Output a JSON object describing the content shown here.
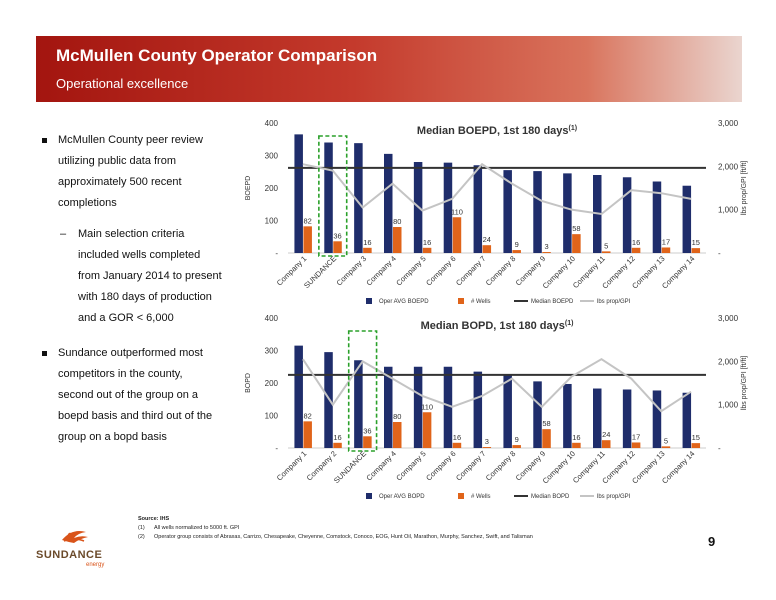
{
  "header": {
    "title": "McMullen County Operator Comparison",
    "subtitle": "Operational excellence"
  },
  "bullets": {
    "b1": [
      "McMullen County peer review",
      "utilizing public data from",
      "approximately 500 recent",
      "completions"
    ],
    "sub_dash": "–",
    "sub": [
      "Main selection criteria",
      "included wells completed",
      "from January 2014 to present",
      "with 180 days of production",
      "and a GOR < 6,000"
    ],
    "b2": [
      "Sundance outperformed most",
      "competitors in the county,",
      "second out of the group on a",
      "boepd basis and third out of the",
      "group on a bopd basis"
    ]
  },
  "footnotes": {
    "source": "Source: IHS",
    "n1": "(1)",
    "t1": "All wells normalized to 5000 ft. GPI",
    "n2": "(2)",
    "t2": "Operator group consists of Abraxas, Carrizo, Chesapeake, Cheyenne, Comstock, Conoco, EOG, Hunt Oil, Marathon, Murphy, Sanchez, Swift, and Talisman"
  },
  "logo": {
    "name": "SUNDANCE",
    "tag": "energy"
  },
  "page_number": "9",
  "colors": {
    "bar_primary": "#1f2d6b",
    "bar_wells": "#e0641a",
    "median": "#333333",
    "lbs_line": "#c4c4c4",
    "highlight_box": "#2aa02a"
  },
  "chart_data": [
    {
      "type": "bar",
      "title": "Median BOEPD, 1st 180 days",
      "title_sup": "(1)",
      "ylabel": "BOEPD",
      "y2label": "lbs prop/GPI [ft/ft]",
      "ylim": [
        0,
        400
      ],
      "y2lim": [
        0,
        3000
      ],
      "yticks": [
        "-",
        "100",
        "200",
        "300",
        "400"
      ],
      "y2ticks": [
        "-",
        "1,000",
        "2,000",
        "3,000"
      ],
      "categories": [
        "Company 1",
        "SUNDANCE",
        "Company 3",
        "Company 4",
        "Company 5",
        "Company 6",
        "Company 7",
        "Company 8",
        "Company 9",
        "Company 10",
        "Company 11",
        "Company 12",
        "Company 13",
        "Company 14"
      ],
      "highlight": "SUNDANCE",
      "median": 262,
      "series": [
        {
          "name": "Oper AVG BOEPD",
          "values": [
            365,
            340,
            338,
            305,
            280,
            278,
            270,
            255,
            252,
            245,
            240,
            233,
            220,
            207
          ]
        },
        {
          "name": "# Wells",
          "values": [
            82,
            36,
            16,
            80,
            16,
            110,
            24,
            9,
            3,
            58,
            5,
            16,
            17,
            15
          ]
        },
        {
          "name": "Median BOEPD"
        },
        {
          "name": "lbs prop/GPI",
          "values": [
            2050,
            1900,
            1050,
            1600,
            980,
            1250,
            2050,
            1600,
            1200,
            1000,
            900,
            1450,
            1380,
            1250
          ]
        }
      ],
      "legend_position": "bottom"
    },
    {
      "type": "bar",
      "title": "Median BOPD, 1st 180 days",
      "title_sup": "(1)",
      "ylabel": "BOPD",
      "y2label": "lbs prop/GPI [ft/ft]",
      "ylim": [
        0,
        400
      ],
      "y2lim": [
        0,
        3000
      ],
      "yticks": [
        "-",
        "100",
        "200",
        "300",
        "400"
      ],
      "y2ticks": [
        "-",
        "1,000",
        "2,000",
        "3,000"
      ],
      "categories": [
        "Company 1",
        "Company 2",
        "SUNDANCE",
        "Company 4",
        "Company 5",
        "Company 6",
        "Company 7",
        "Company 8",
        "Company 9",
        "Company 10",
        "Company 11",
        "Company 12",
        "Company 13",
        "Company 14"
      ],
      "highlight": "SUNDANCE",
      "median": 225,
      "series": [
        {
          "name": "Oper AVG BOPD",
          "values": [
            315,
            295,
            270,
            250,
            250,
            250,
            235,
            225,
            205,
            197,
            183,
            180,
            177,
            170
          ]
        },
        {
          "name": "# Wells",
          "values": [
            82,
            16,
            36,
            80,
            110,
            16,
            3,
            9,
            58,
            16,
            24,
            17,
            5,
            15
          ]
        },
        {
          "name": "Median BOPD"
        },
        {
          "name": "lbs prop/GPI",
          "values": [
            2050,
            1000,
            2000,
            1600,
            1200,
            950,
            1200,
            1600,
            950,
            1650,
            2050,
            1600,
            850,
            1300
          ]
        }
      ],
      "legend_position": "bottom"
    }
  ]
}
